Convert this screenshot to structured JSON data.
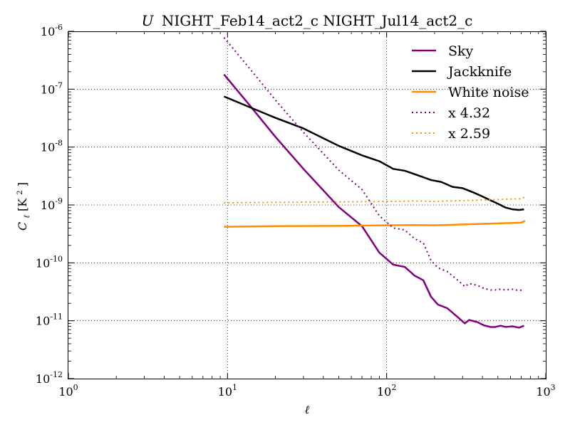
{
  "chart_data": {
    "type": "line",
    "title": "U NIGHT_Feb14_act2_c NIGHT_Jul14_act2_c",
    "title_parts": {
      "symbol": "U",
      "rest": "NIGHT_Feb14_act2_c NIGHT_Jul14_act2_c"
    },
    "xlabel": "ℓ",
    "ylabel": {
      "main": "C",
      "subscript": "ℓ",
      "unit_open": " [K",
      "unit_sup": "2",
      "unit_close": "]"
    },
    "xscale": "log",
    "yscale": "log",
    "xlim": [
      1,
      1000
    ],
    "ylim": [
      1e-12,
      1e-06
    ],
    "grid": true,
    "legend_position": "top-right",
    "x_ticks": [
      {
        "value": 1,
        "base": "10",
        "exp": "0"
      },
      {
        "value": 10,
        "base": "10",
        "exp": "1"
      },
      {
        "value": 100,
        "base": "10",
        "exp": "2"
      },
      {
        "value": 1000,
        "base": "10",
        "exp": "3"
      }
    ],
    "y_ticks": [
      {
        "value": 1e-12,
        "base": "10",
        "exp": "-12"
      },
      {
        "value": 1e-11,
        "base": "10",
        "exp": "-11"
      },
      {
        "value": 1e-10,
        "base": "10",
        "exp": "-10"
      },
      {
        "value": 1e-09,
        "base": "10",
        "exp": "-9"
      },
      {
        "value": 1e-08,
        "base": "10",
        "exp": "-8"
      },
      {
        "value": 1e-07,
        "base": "10",
        "exp": "-7"
      },
      {
        "value": 1e-06,
        "base": "10",
        "exp": "-6"
      }
    ],
    "series": [
      {
        "name": "Sky",
        "color": "#800080",
        "style": "solid",
        "x": [
          9.5,
          14,
          20,
          30,
          50,
          70,
          90,
          110,
          130,
          150,
          170,
          190,
          210,
          240,
          280,
          310,
          330,
          370,
          410,
          450,
          480,
          520,
          560,
          620,
          680,
          730
        ],
        "y": [
          1.8e-07,
          5e-08,
          1.5e-08,
          4.2e-09,
          9.2e-10,
          4.3e-10,
          1.5e-10,
          9.3e-11,
          8.5e-11,
          6e-11,
          5e-11,
          2.6e-11,
          1.9e-11,
          1.65e-11,
          1.15e-11,
          9e-12,
          1.03e-11,
          9.5e-12,
          8.3e-12,
          7.8e-12,
          7.8e-12,
          8.2e-12,
          7.8e-12,
          8e-12,
          7.6e-12,
          8.2e-12
        ]
      },
      {
        "name": "Jackknife",
        "color": "#000000",
        "style": "solid",
        "x": [
          9.5,
          14,
          20,
          30,
          50,
          70,
          90,
          110,
          130,
          160,
          190,
          220,
          260,
          300,
          350,
          400,
          450,
          500,
          560,
          620,
          680,
          730
        ],
        "y": [
          7.5e-08,
          4.8e-08,
          3.2e-08,
          2.1e-08,
          1.05e-08,
          7.2e-09,
          5.7e-09,
          4.2e-09,
          3.9e-09,
          3.2e-09,
          2.7e-09,
          2.5e-09,
          2.05e-09,
          1.95e-09,
          1.65e-09,
          1.4e-09,
          1.2e-09,
          1.05e-09,
          9e-10,
          8.4e-10,
          8.2e-10,
          8.4e-10
        ]
      },
      {
        "name": "White noise",
        "color": "#ff8c00",
        "style": "solid",
        "x": [
          9.5,
          20,
          50,
          100,
          150,
          200,
          300,
          500,
          700,
          740
        ],
        "y": [
          4.2e-10,
          4.3e-10,
          4.35e-10,
          4.45e-10,
          4.5e-10,
          4.45e-10,
          4.6e-10,
          4.8e-10,
          4.95e-10,
          5.3e-10
        ]
      },
      {
        "name": "x 4.32",
        "color": "#800080",
        "style": "dotted",
        "x": [
          9.5,
          14,
          20,
          30,
          50,
          70,
          90,
          110,
          130,
          150,
          170,
          190,
          210,
          240,
          280,
          310,
          330,
          370,
          410,
          450,
          480,
          520,
          560,
          620,
          680,
          730
        ],
        "y": [
          7.8e-07,
          2.16e-07,
          6.5e-08,
          1.8e-08,
          4e-09,
          1.85e-09,
          6.5e-10,
          4e-10,
          3.7e-10,
          2.6e-10,
          2.2e-10,
          1.1e-10,
          8.2e-11,
          7.1e-11,
          5e-11,
          3.9e-11,
          4.4e-11,
          4.1e-11,
          3.6e-11,
          3.4e-11,
          3.4e-11,
          3.5e-11,
          3.4e-11,
          3.5e-11,
          3.3e-11,
          3.5e-11
        ]
      },
      {
        "name": "x 2.59",
        "color": "#ff8c00",
        "style": "dotted",
        "x": [
          9.5,
          20,
          50,
          100,
          150,
          200,
          300,
          500,
          700,
          740
        ],
        "y": [
          1.09e-09,
          1.11e-09,
          1.13e-09,
          1.15e-09,
          1.17e-09,
          1.15e-09,
          1.19e-09,
          1.24e-09,
          1.28e-09,
          1.37e-09
        ]
      }
    ]
  }
}
